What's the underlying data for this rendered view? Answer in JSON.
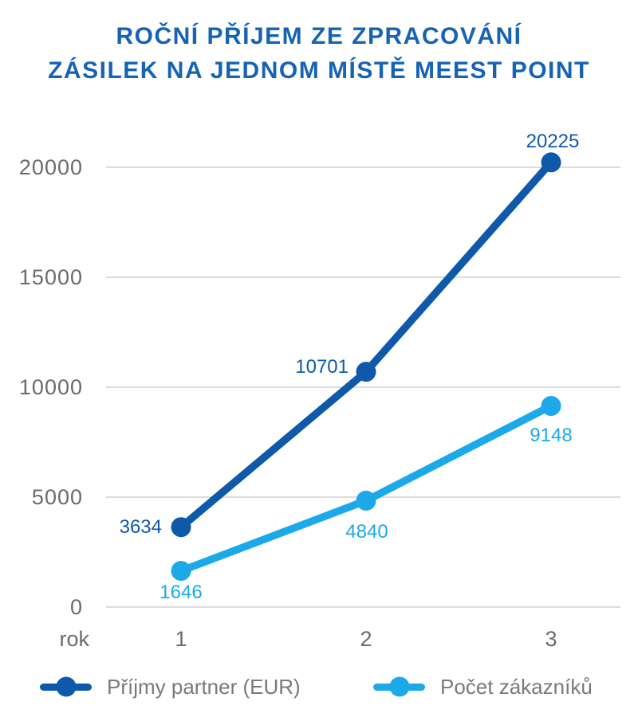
{
  "header": {
    "title_line1": "ROČNÍ PŘÍJEM ZE ZPRACOVÁNÍ",
    "title_line2": "ZÁSILEK NA JEDNOM MÍSTĚ MEEST POINT"
  },
  "colors": {
    "title": "#1663b5",
    "axis_text": "#6b6b6b",
    "gridline": "#dcdcdc",
    "legend_text": "#7a7a7a",
    "background": "#ffffff"
  },
  "chart_data": {
    "type": "line",
    "title": "ROČNÍ PŘÍJEM ZE ZPRACOVÁNÍ ZÁSILEK NA JEDNOM MÍSTĚ MEEST POINT",
    "xlabel": "rok",
    "ylabel": "",
    "categories": [
      "1",
      "2",
      "3"
    ],
    "series": [
      {
        "name": "Příjmy partner (EUR)",
        "values": [
          3634,
          10701,
          20225
        ],
        "color": "#0e59a9"
      },
      {
        "name": "Počet zákazníků",
        "values": [
          1646,
          4840,
          9148
        ],
        "color": "#1ca9e9"
      }
    ],
    "data_labels": [
      [
        "3634",
        "10701",
        "20225"
      ],
      [
        "1646",
        "4840",
        "9148"
      ]
    ],
    "ylim": [
      0,
      20000
    ],
    "yticks": [
      0,
      5000,
      10000,
      15000,
      20000
    ],
    "ytick_labels": [
      "0",
      "5000",
      "10000",
      "15000",
      "20000"
    ],
    "grid": true,
    "legend_position": "bottom"
  }
}
